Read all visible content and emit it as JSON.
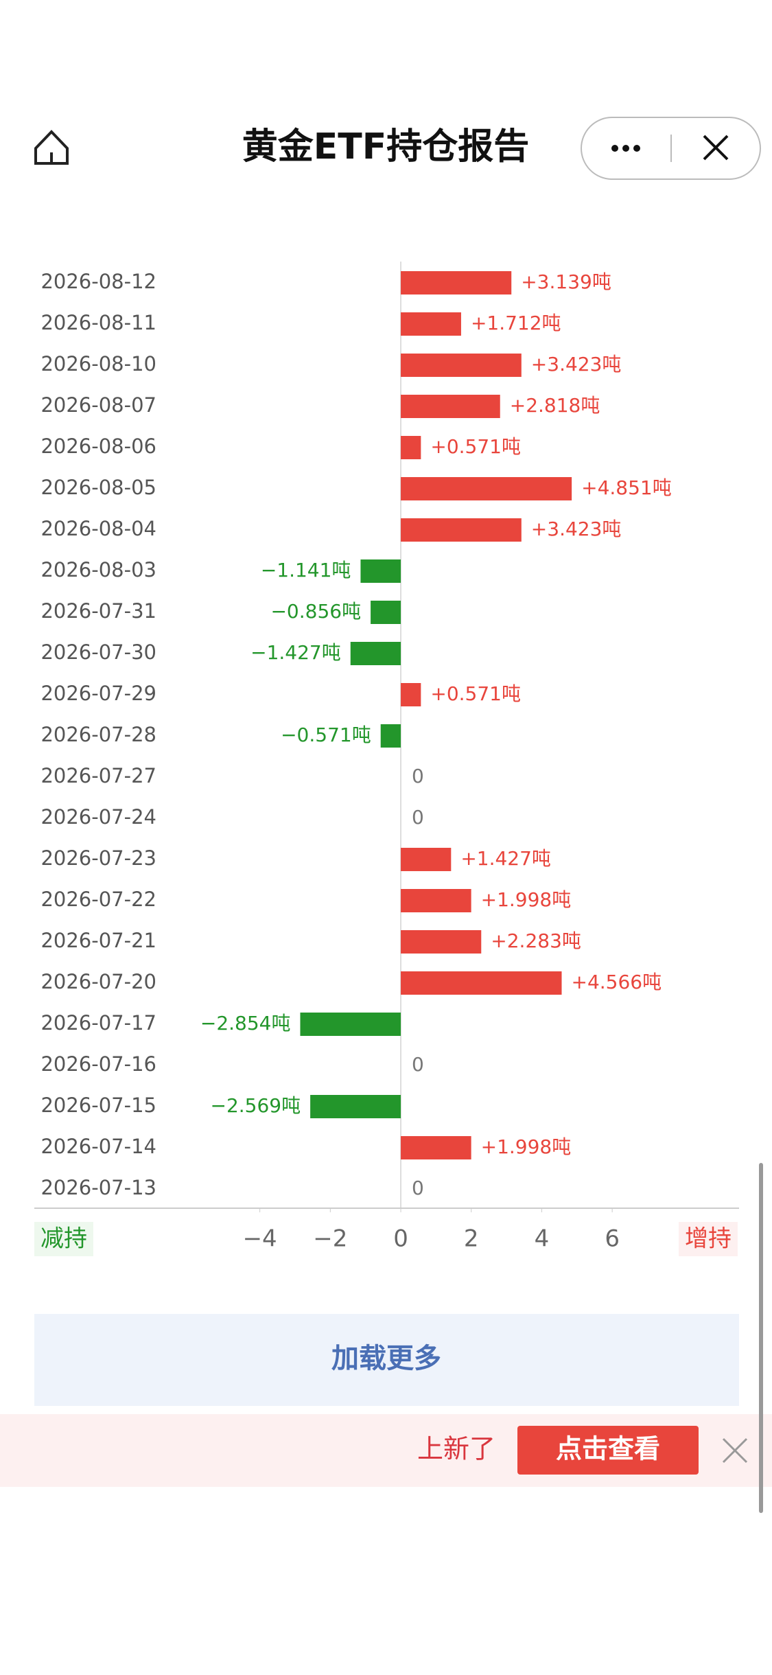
{
  "header": {
    "title": "黄金ETF持仓报告"
  },
  "chart_data": {
    "type": "hbar",
    "categories": [
      "2026-08-12",
      "2026-08-11",
      "2026-08-10",
      "2026-08-07",
      "2026-08-06",
      "2026-08-05",
      "2026-08-04",
      "2026-08-03",
      "2026-07-31",
      "2026-07-30",
      "2026-07-29",
      "2026-07-28",
      "2026-07-27",
      "2026-07-24",
      "2026-07-23",
      "2026-07-22",
      "2026-07-21",
      "2026-07-20",
      "2026-07-17",
      "2026-07-16",
      "2026-07-15",
      "2026-07-14",
      "2026-07-13"
    ],
    "values": [
      3.139,
      1.712,
      3.423,
      2.818,
      0.571,
      4.851,
      3.423,
      -1.141,
      -0.856,
      -1.427,
      0.571,
      -0.571,
      0,
      0,
      1.427,
      1.998,
      2.283,
      4.566,
      -2.854,
      0,
      -2.569,
      1.998,
      0
    ],
    "value_labels": [
      "+3.139吨",
      "+1.712吨",
      "+3.423吨",
      "+2.818吨",
      "+0.571吨",
      "+4.851吨",
      "+3.423吨",
      "−1.141吨",
      "−0.856吨",
      "−1.427吨",
      "+0.571吨",
      "−0.571吨",
      "0",
      "0",
      "+1.427吨",
      "+1.998吨",
      "+2.283吨",
      "+4.566吨",
      "−2.854吨",
      "0",
      "−2.569吨",
      "+1.998吨",
      "0"
    ],
    "positive_color": "#e8453c",
    "negative_color": "#23962b",
    "xlim": [
      -10.4,
      9.6
    ],
    "xticks": [
      {
        "value": -4,
        "label": "−4"
      },
      {
        "value": -2,
        "label": "−2"
      },
      0,
      2,
      4,
      6
    ],
    "left_label": "减持",
    "right_label": "增持"
  },
  "load_more": "加载更多",
  "banner": {
    "text": "上新了",
    "button": "点击查看"
  }
}
